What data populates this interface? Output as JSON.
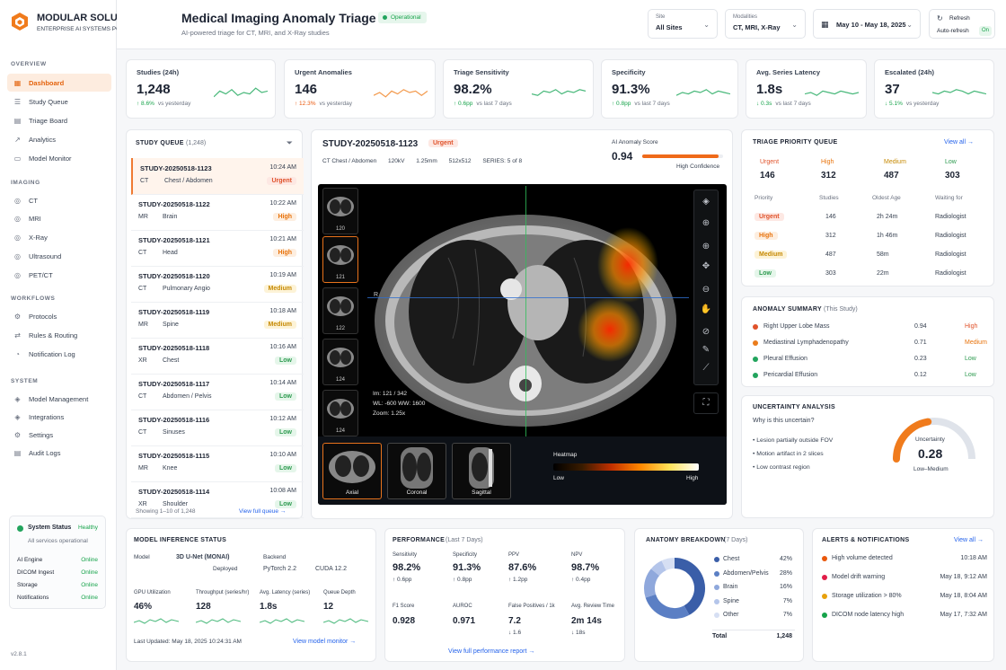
{
  "brand": {
    "name": "MODULAR SOLUTIONS",
    "tagline": "ENTERPRISE AI SYSTEMS PORTFOLIO"
  },
  "header": {
    "title": "Medical Imaging Anomaly Triage",
    "status": "Operational",
    "subtitle": "AI-powered triage for CT, MRI, and X-Ray studies",
    "site": {
      "label": "Site",
      "value": "All Sites"
    },
    "modalities": {
      "label": "Modalities",
      "value": "CT, MRI, X-Ray"
    },
    "dates": "May 10 - May 18, 2025",
    "refresh": {
      "label": "Refresh",
      "auto": "Auto-refresh",
      "toggle": "On"
    }
  },
  "sidebar": {
    "overview": "OVERVIEW",
    "overview_items": [
      "Dashboard",
      "Study Queue",
      "Triage Board",
      "Analytics",
      "Model Monitor"
    ],
    "imaging": "IMAGING",
    "imaging_items": [
      "CT",
      "MRI",
      "X-Ray",
      "Ultrasound",
      "PET/CT"
    ],
    "workflows": "WORKFLOWS",
    "workflows_items": [
      "Protocols",
      "Rules & Routing",
      "Notification Log"
    ],
    "system": "SYSTEM",
    "system_items": [
      "Model Management",
      "Integrations",
      "Settings",
      "Audit Logs"
    ],
    "status": {
      "title": "System Status",
      "state": "Healthy",
      "note": "All services operational",
      "services": [
        {
          "name": "AI Engine",
          "state": "Online"
        },
        {
          "name": "DICOM Ingest",
          "state": "Online"
        },
        {
          "name": "Storage",
          "state": "Online"
        },
        {
          "name": "Notifications",
          "state": "Online"
        }
      ]
    },
    "version": "v2.8.1"
  },
  "kpis": [
    {
      "title": "Studies (24h)",
      "value": "1,248",
      "delta": "↑ 8.6%",
      "note": "vs yesterday"
    },
    {
      "title": "Urgent Anomalies",
      "value": "146",
      "delta": "↑ 12.3%",
      "note": "vs yesterday"
    },
    {
      "title": "Triage Sensitivity",
      "value": "98.2%",
      "delta": "↑ 0.6pp",
      "note": "vs last 7 days"
    },
    {
      "title": "Specificity",
      "value": "91.3%",
      "delta": "↑ 0.8pp",
      "note": "vs last 7 days"
    },
    {
      "title": "Avg. Series Latency",
      "value": "1.8s",
      "delta": "↓ 0.3s",
      "note": "vs last 7 days"
    },
    {
      "title": "Escalated (24h)",
      "value": "37",
      "delta": "↓ 5.1%",
      "note": "vs yesterday"
    }
  ],
  "queue": {
    "title": "STUDY QUEUE",
    "count": "(1,248)",
    "footer": "Showing 1–10 of 1,248",
    "link": "View full queue",
    "rows": [
      {
        "id": "STUDY-20250518-1123",
        "time": "10:24 AM",
        "mod": "CT",
        "part": "Chest / Abdomen",
        "pri": "Urgent"
      },
      {
        "id": "STUDY-20250518-1122",
        "time": "10:22 AM",
        "mod": "MR",
        "part": "Brain",
        "pri": "High"
      },
      {
        "id": "STUDY-20250518-1121",
        "time": "10:21 AM",
        "mod": "CT",
        "part": "Head",
        "pri": "High"
      },
      {
        "id": "STUDY-20250518-1120",
        "time": "10:19 AM",
        "mod": "CT",
        "part": "Pulmonary Angio",
        "pri": "Medium"
      },
      {
        "id": "STUDY-20250518-1119",
        "time": "10:18 AM",
        "mod": "MR",
        "part": "Spine",
        "pri": "Medium"
      },
      {
        "id": "STUDY-20250518-1118",
        "time": "10:16 AM",
        "mod": "XR",
        "part": "Chest",
        "pri": "Low"
      },
      {
        "id": "STUDY-20250518-1117",
        "time": "10:14 AM",
        "mod": "CT",
        "part": "Abdomen / Pelvis",
        "pri": "Low"
      },
      {
        "id": "STUDY-20250518-1116",
        "time": "10:12 AM",
        "mod": "CT",
        "part": "Sinuses",
        "pri": "Low"
      },
      {
        "id": "STUDY-20250518-1115",
        "time": "10:10 AM",
        "mod": "MR",
        "part": "Knee",
        "pri": "Low"
      },
      {
        "id": "STUDY-20250518-1114",
        "time": "10:08 AM",
        "mod": "XR",
        "part": "Shoulder",
        "pri": "Low"
      }
    ]
  },
  "study": {
    "id": "STUDY-20250518-1123",
    "priority": "Urgent",
    "meta": [
      "CT Chest / Abdomen",
      "120kV",
      "1.25mm",
      "512x512",
      "SERIES: 5 of 8"
    ],
    "score_label": "AI Anomaly Score",
    "score": "0.94",
    "score_fill": 0.94,
    "confidence": "High Confidence",
    "slices": [
      "120",
      "121",
      "122",
      "124",
      "124"
    ],
    "overlay": [
      "Im: 121 / 342",
      "WL: -600  WW: 1600",
      "Zoom: 1.25x"
    ],
    "marker": "R",
    "views": [
      "Axial",
      "Coronal",
      "Sagittal"
    ],
    "heatmap": {
      "label": "Heatmap",
      "low": "Low",
      "high": "High"
    }
  },
  "triage": {
    "title": "TRIAGE PRIORITY QUEUE",
    "link": "View all",
    "summary": [
      {
        "name": "Urgent",
        "value": "146"
      },
      {
        "name": "High",
        "value": "312"
      },
      {
        "name": "Medium",
        "value": "487"
      },
      {
        "name": "Low",
        "value": "303"
      }
    ],
    "columns": [
      "Priority",
      "Studies",
      "Oldest Age",
      "Waiting for"
    ],
    "rows": [
      {
        "p": "Urgent",
        "n": "146",
        "age": "2h 24m",
        "w": "Radiologist"
      },
      {
        "p": "High",
        "n": "312",
        "age": "1h 46m",
        "w": "Radiologist"
      },
      {
        "p": "Medium",
        "n": "487",
        "age": "58m",
        "w": "Radiologist"
      },
      {
        "p": "Low",
        "n": "303",
        "age": "22m",
        "w": "Radiologist"
      }
    ]
  },
  "anomaly": {
    "title": "ANOMALY SUMMARY",
    "sub": "(This Study)",
    "items": [
      {
        "name": "Right Upper Lobe Mass",
        "score": "0.94",
        "level": "High"
      },
      {
        "name": "Mediastinal Lymphadenopathy",
        "score": "0.71",
        "level": "Medium"
      },
      {
        "name": "Pleural Effusion",
        "score": "0.23",
        "level": "Low"
      },
      {
        "name": "Pericardial Effusion",
        "score": "0.12",
        "level": "Low"
      }
    ]
  },
  "uncertainty": {
    "title": "UNCERTAINTY ANALYSIS",
    "q": "Why is this uncertain?",
    "reasons": [
      "Lesion partially outside FOV",
      "Motion artifact in 2 slices",
      "Low contrast region"
    ],
    "gauge_label": "Uncertainty",
    "value": "0.28",
    "level": "Low–Medium",
    "fill": 0.28
  },
  "inference": {
    "title": "MODEL INFERENCE STATUS",
    "model_label": "Model",
    "model": "3D U-Net (MONAI)",
    "deployed": "Deployed",
    "backend_label": "Backend",
    "backend": "PyTorch 2.2",
    "cuda": "CUDA 12.2",
    "metrics": [
      {
        "l": "GPU Utilization",
        "v": "46%"
      },
      {
        "l": "Throughput (series/hr)",
        "v": "128"
      },
      {
        "l": "Avg. Latency (series)",
        "v": "1.8s"
      },
      {
        "l": "Queue Depth",
        "v": "12"
      }
    ],
    "updated": "Last Updated: May 18, 2025 10:24:31 AM",
    "link": "View model monitor"
  },
  "performance": {
    "title": "PERFORMANCE",
    "sub": "(Last 7 Days)",
    "top": [
      {
        "l": "Sensitivity",
        "v": "98.2%",
        "d": "↑ 0.6pp"
      },
      {
        "l": "Specificity",
        "v": "91.3%",
        "d": "↑ 0.8pp"
      },
      {
        "l": "PPV",
        "v": "87.6%",
        "d": "↑ 1.2pp"
      },
      {
        "l": "NPV",
        "v": "98.7%",
        "d": "↑ 0.4pp"
      }
    ],
    "bottom": [
      {
        "l": "F1 Score",
        "v": "0.928",
        "d": ""
      },
      {
        "l": "AUROC",
        "v": "0.971",
        "d": ""
      },
      {
        "l": "False Positives / 1k",
        "v": "7.2",
        "d": "↓ 1.6"
      },
      {
        "l": "Avg. Review Time",
        "v": "2m 14s",
        "d": "↓ 18s"
      }
    ],
    "link": "View full performance report"
  },
  "anatomy": {
    "title": "ANATOMY BREAKDOWN",
    "sub": "(7 Days)",
    "items": [
      {
        "name": "Chest",
        "pct": "42%",
        "v": 42,
        "color": "#3a5ea8"
      },
      {
        "name": "Abdomen/Pelvis",
        "pct": "28%",
        "v": 28,
        "color": "#5b7fc4"
      },
      {
        "name": "Brain",
        "pct": "16%",
        "v": 16,
        "color": "#8fa8dc"
      },
      {
        "name": "Spine",
        "pct": "7%",
        "v": 7,
        "color": "#b4c5ea"
      },
      {
        "name": "Other",
        "pct": "7%",
        "v": 7,
        "color": "#d6dff3"
      }
    ],
    "total_label": "Total",
    "total": "1,248"
  },
  "alerts": {
    "title": "ALERTS & NOTIFICATIONS",
    "link": "View all",
    "items": [
      {
        "text": "High volume detected",
        "time": "10:18 AM",
        "color": "#ea580c"
      },
      {
        "text": "Model drift warning",
        "time": "May 18, 9:12 AM",
        "color": "#e11d48"
      },
      {
        "text": "Storage utilization > 80%",
        "time": "May 18, 8:04 AM",
        "color": "#e8a10c"
      },
      {
        "text": "DICOM node latency high",
        "time": "May 17, 7:32 AM",
        "color": "#16a34a"
      }
    ]
  }
}
